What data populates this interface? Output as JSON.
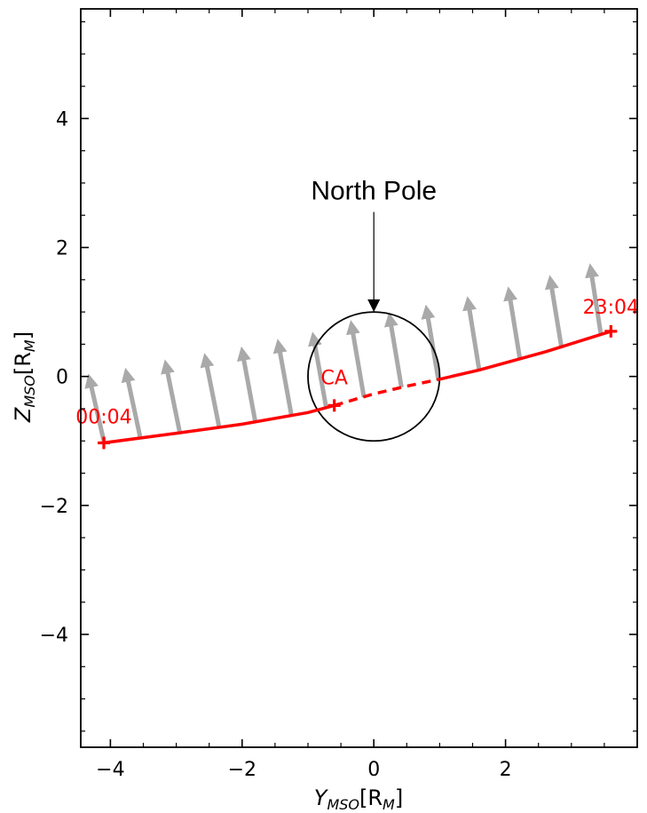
{
  "chart_data": {
    "type": "line",
    "xlabel": {
      "main": "Y",
      "sub": "MSO",
      "rest": "[R",
      "sub2": "M",
      "end": "]"
    },
    "ylabel": {
      "main": "Z",
      "sub": "MSO",
      "rest": "[R",
      "sub2": "M",
      "end": "]"
    },
    "xlim": [
      -4.45,
      4.0
    ],
    "ylim": [
      -5.75,
      5.7
    ],
    "x_ticks": [
      -4,
      -2,
      0,
      2
    ],
    "x_tick_labels": [
      "−4",
      "−2",
      "0",
      "2"
    ],
    "y_ticks": [
      -4,
      -2,
      0,
      2,
      4
    ],
    "y_tick_labels": [
      "−4",
      "−2",
      "0",
      "2",
      "4"
    ],
    "grid": false,
    "planet": {
      "center": [
        0,
        0
      ],
      "radius": 1.0,
      "color": "#000000"
    },
    "trajectory": {
      "color": "#ff0000",
      "points": [
        [
          -4.1,
          -1.03
        ],
        [
          -3.0,
          -0.88
        ],
        [
          -2.0,
          -0.74
        ],
        [
          -1.0,
          -0.56
        ],
        [
          -0.6,
          -0.45
        ],
        [
          0.0,
          -0.27
        ],
        [
          0.5,
          -0.15
        ],
        [
          0.97,
          -0.05
        ],
        [
          1.6,
          0.1
        ],
        [
          2.6,
          0.38
        ],
        [
          3.6,
          0.7
        ]
      ],
      "shadow_start_x": -0.6,
      "shadow_end_x": 0.97
    },
    "markers": [
      {
        "label": "00:04",
        "x": -4.1,
        "y": -1.03
      },
      {
        "label": "CA",
        "x": -0.6,
        "y": -0.45
      },
      {
        "label": "23:04",
        "x": 3.6,
        "y": 0.7
      }
    ],
    "field_vectors": {
      "color": "#a9a9a9",
      "items": [
        {
          "x": -4.1,
          "y": -1.0,
          "dx": -0.22,
          "dy": 0.98
        },
        {
          "x": -3.55,
          "y": -0.93,
          "dx": -0.21,
          "dy": 1.0
        },
        {
          "x": -2.95,
          "y": -0.85,
          "dx": -0.21,
          "dy": 1.05
        },
        {
          "x": -2.35,
          "y": -0.78,
          "dx": -0.21,
          "dy": 1.08
        },
        {
          "x": -1.8,
          "y": -0.7,
          "dx": -0.2,
          "dy": 1.1
        },
        {
          "x": -1.25,
          "y": -0.61,
          "dx": -0.2,
          "dy": 1.13
        },
        {
          "x": -0.72,
          "y": -0.5,
          "dx": -0.2,
          "dy": 1.13
        },
        {
          "x": -0.15,
          "y": -0.32,
          "dx": -0.19,
          "dy": 1.13
        },
        {
          "x": 0.42,
          "y": -0.17,
          "dx": -0.18,
          "dy": 1.1
        },
        {
          "x": 0.98,
          "y": -0.05,
          "dx": -0.18,
          "dy": 1.1
        },
        {
          "x": 1.6,
          "y": 0.1,
          "dx": -0.17,
          "dy": 1.08
        },
        {
          "x": 2.22,
          "y": 0.26,
          "dx": -0.17,
          "dy": 1.07
        },
        {
          "x": 2.85,
          "y": 0.45,
          "dx": -0.17,
          "dy": 1.06
        },
        {
          "x": 3.45,
          "y": 0.64,
          "dx": -0.16,
          "dy": 1.05
        }
      ]
    },
    "annotation": {
      "text": "North Pole",
      "arrow_from": [
        0,
        2.55
      ],
      "arrow_to": [
        0,
        1.02
      ]
    }
  }
}
